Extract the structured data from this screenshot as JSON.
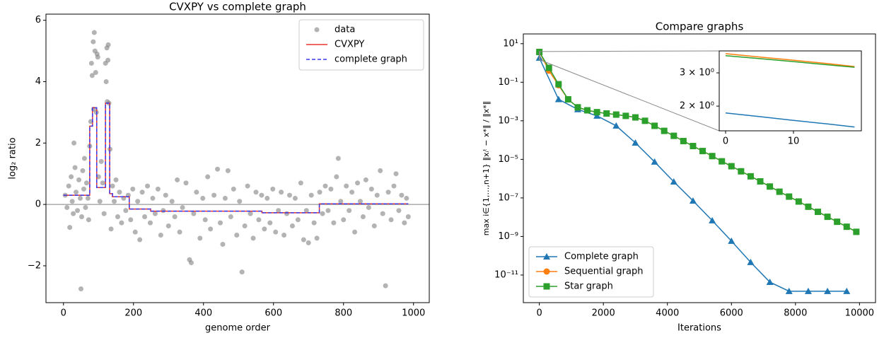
{
  "chart_data": [
    {
      "type": "scatter",
      "title": "CVXPY vs complete graph",
      "x_label": "genome order",
      "y_label": "log₂ ratio",
      "xlim": [
        -50,
        1045
      ],
      "ylim": [
        -3.2,
        6.2
      ],
      "xticks": [
        0,
        200,
        400,
        600,
        800,
        1000
      ],
      "yticks": [
        {
          "value": -2,
          "label": "−2"
        },
        0,
        2,
        4,
        6
      ],
      "hline": 0,
      "legend": "upper right",
      "series": [
        {
          "name": "data",
          "type": "scatter",
          "color": "#808080",
          "x": [
            5,
            10,
            15,
            18,
            22,
            25,
            28,
            30,
            33,
            36,
            40,
            44,
            48,
            50,
            52,
            55,
            58,
            60,
            63,
            66,
            70,
            72,
            75,
            78,
            80,
            82,
            85,
            86,
            88,
            90,
            92,
            94,
            96,
            98,
            100,
            104,
            108,
            112,
            116,
            120,
            122,
            124,
            125,
            127,
            128,
            130,
            133,
            136,
            140,
            145,
            150,
            155,
            160,
            166,
            172,
            178,
            185,
            192,
            198,
            205,
            212,
            218,
            225,
            232,
            240,
            248,
            255,
            262,
            270,
            278,
            285,
            292,
            300,
            310,
            318,
            325,
            332,
            340,
            350,
            360,
            365,
            372,
            380,
            390,
            398,
            405,
            412,
            420,
            430,
            440,
            448,
            455,
            462,
            470,
            478,
            486,
            495,
            503,
            510,
            518,
            526,
            534,
            542,
            550,
            558,
            566,
            574,
            582,
            590,
            598,
            606,
            614,
            622,
            630,
            638,
            646,
            654,
            662,
            670,
            678,
            686,
            694,
            700,
            708,
            716,
            724,
            732,
            740,
            748,
            756,
            764,
            772,
            780,
            785,
            792,
            800,
            808,
            816,
            824,
            832,
            840,
            848,
            856,
            864,
            872,
            880,
            888,
            896,
            905,
            912,
            920,
            928,
            936,
            944,
            950,
            958,
            966,
            974,
            980,
            985
          ],
          "values": [
            0.3,
            -0.1,
            0.6,
            -0.75,
            0.9,
            0.1,
            -0.3,
            2.0,
            1.2,
            0.4,
            -0.2,
            0.8,
            0.2,
            -2.75,
            -0.4,
            1.1,
            0.5,
            1.5,
            -0.1,
            0.7,
            0.2,
            -0.5,
            1.9,
            2.7,
            4.6,
            4.2,
            5.3,
            3.1,
            5.6,
            5.0,
            4.3,
            3.0,
            4.9,
            4.8,
            0.9,
            0.1,
            1.4,
            0.7,
            -0.3,
            4.6,
            4.0,
            5.1,
            3.35,
            4.7,
            5.2,
            3.3,
            1.8,
            -0.8,
            0.6,
            0.1,
            0.8,
            -0.4,
            0.4,
            -0.6,
            0.2,
            -0.2,
            0.3,
            -0.5,
            0.5,
            -0.9,
            0.1,
            -1.15,
            0.4,
            -0.4,
            0.6,
            -0.6,
            0.2,
            -0.3,
            0.5,
            -1.0,
            -0.2,
            0.3,
            -0.7,
            0.1,
            -0.4,
            0.8,
            -0.9,
            -0.1,
            0.7,
            -1.8,
            -1.9,
            -0.3,
            0.4,
            -1.1,
            0.2,
            -0.5,
            0.9,
            -0.8,
            0.3,
            1.15,
            -0.6,
            -1.3,
            0.2,
            1.1,
            -0.4,
            0.5,
            -1.0,
            0.1,
            -2.2,
            -0.7,
            0.6,
            -0.3,
            -1.1,
            0.4,
            -0.5,
            0.3,
            -0.8,
            0.2,
            -0.6,
            0.5,
            -0.9,
            -0.2,
            0.4,
            -1.0,
            -0.3,
            0.3,
            -0.7,
            0.2,
            -0.5,
            0.7,
            -1.15,
            -0.2,
            -1.25,
            0.3,
            -0.6,
            -1.1,
            0.4,
            -0.3,
            0.6,
            -0.2,
            0.5,
            -0.6,
            0.9,
            1.5,
            0.1,
            -0.5,
            0.6,
            -0.2,
            0.4,
            -0.9,
            0.7,
            0.1,
            -0.4,
            0.8,
            -0.1,
            0.5,
            -0.7,
            0.3,
            1.1,
            -0.3,
            -2.65,
            0.4,
            -0.5,
            0.6,
            1.0,
            -0.2,
            0.3,
            -0.6,
            0.2,
            -0.4
          ]
        },
        {
          "name": "CVXPY",
          "type": "line",
          "color": "#e8352b",
          "x": [
            0,
            75,
            75,
            83,
            83,
            95,
            95,
            120,
            120,
            132,
            132,
            140,
            140,
            188,
            188,
            249,
            249,
            567,
            567,
            731,
            731,
            985
          ],
          "values": [
            0.3,
            0.3,
            2.55,
            2.55,
            3.15,
            3.15,
            0.55,
            0.55,
            3.3,
            3.3,
            0.35,
            0.35,
            0.25,
            0.25,
            -0.15,
            -0.15,
            -0.22,
            -0.22,
            -0.27,
            -0.27,
            0.02,
            0.02
          ]
        },
        {
          "name": "complete graph",
          "type": "line",
          "color": "#3a3aee",
          "linestyle": "dashed",
          "x": [
            0,
            75,
            75,
            83,
            83,
            95,
            95,
            120,
            120,
            132,
            132,
            140,
            140,
            188,
            188,
            249,
            249,
            567,
            567,
            731,
            731,
            985
          ],
          "values": [
            0.3,
            0.3,
            2.55,
            2.55,
            3.15,
            3.15,
            0.55,
            0.55,
            3.3,
            3.3,
            0.35,
            0.35,
            0.25,
            0.25,
            -0.15,
            -0.15,
            -0.22,
            -0.22,
            -0.27,
            -0.27,
            0.02,
            0.02
          ]
        }
      ]
    },
    {
      "type": "line",
      "title": "Compare graphs",
      "x_label": "Iterations",
      "y_label": "max i∈{1,…,n+1}  ‖xᵢᵗ − x*‖ / ‖x*‖",
      "xlim": [
        -500,
        10500
      ],
      "ylim": [
        3.7e-13,
        32
      ],
      "yscale": "log",
      "xticks": [
        0,
        2000,
        4000,
        6000,
        8000,
        10000
      ],
      "yticks": [
        {
          "value": 10,
          "label": "10¹"
        },
        {
          "value": 0.1,
          "label": "10⁻¹"
        },
        {
          "value": 0.001,
          "label": "10⁻³"
        },
        {
          "value": 1e-05,
          "label": "10⁻⁵"
        },
        {
          "value": 1e-07,
          "label": "10⁻⁷"
        },
        {
          "value": 1e-09,
          "label": "10⁻⁹"
        },
        {
          "value": 1e-11,
          "label": "10⁻¹¹"
        }
      ],
      "legend": "lower left",
      "series": [
        {
          "name": "Complete graph",
          "color": "#1f77b4",
          "marker": "triangle",
          "x": [
            0,
            600,
            1200,
            1800,
            2400,
            3000,
            3600,
            4200,
            4800,
            5400,
            6000,
            6600,
            7200,
            7800,
            8400,
            9000,
            9600
          ],
          "values": [
            1.84,
            0.013,
            0.0039,
            0.0018,
            0.00055,
            7.2e-05,
            7.4e-06,
            6.9e-07,
            7.1e-08,
            6.7e-09,
            5.8e-10,
            4.6e-11,
            4.3e-12,
            1.45e-12,
            1.45e-12,
            1.45e-12,
            1.45e-12
          ]
        },
        {
          "name": "Sequential graph",
          "color": "#ff7f0e",
          "marker": "circle",
          "x": [
            0,
            300,
            600,
            900,
            1200,
            1500,
            1800,
            2100,
            2400,
            2700,
            3000,
            3300,
            3600,
            3900,
            4200,
            4500,
            4800,
            5100,
            5400,
            5700,
            6000,
            6300,
            6600,
            6900,
            7200,
            7500,
            7800,
            8100,
            8400,
            8700,
            9000,
            9300,
            9600,
            9900
          ],
          "values": [
            3.79,
            0.4,
            0.07,
            0.013,
            0.005,
            0.0035,
            0.0028,
            0.0024,
            0.0021,
            0.0018,
            0.0015,
            0.001,
            0.00055,
            0.0003,
            0.000166,
            8.9e-05,
            4.9e-05,
            2.7e-05,
            1.48e-05,
            7.9e-06,
            4.4e-06,
            2.4e-06,
            1.32e-06,
            7.2e-07,
            3.9e-07,
            2.1e-07,
            1.17e-07,
            6.5e-08,
            3.5e-08,
            1.9e-08,
            1.05e-08,
            5.8e-09,
            3.2e-09,
            1.74e-09
          ]
        },
        {
          "name": "Star graph",
          "color": "#2ca02c",
          "marker": "square",
          "x": [
            0,
            300,
            600,
            900,
            1200,
            1500,
            1800,
            2100,
            2400,
            2700,
            3000,
            3300,
            3600,
            3900,
            4200,
            4500,
            4800,
            5100,
            5400,
            5700,
            6000,
            6300,
            6600,
            6900,
            7200,
            7500,
            7800,
            8100,
            8400,
            8700,
            9000,
            9300,
            9600,
            9900
          ],
          "values": [
            3.7,
            0.56,
            0.079,
            0.013,
            0.005,
            0.0035,
            0.0028,
            0.0024,
            0.0021,
            0.0018,
            0.0015,
            0.001,
            0.00055,
            0.0003,
            0.000166,
            8.9e-05,
            4.9e-05,
            2.7e-05,
            1.48e-05,
            7.9e-06,
            4.4e-06,
            2.4e-06,
            1.32e-06,
            7.2e-07,
            3.9e-07,
            2.1e-07,
            1.17e-07,
            6.5e-08,
            3.5e-08,
            1.9e-08,
            1.05e-08,
            5.8e-09,
            3.2e-09,
            1.74e-09
          ]
        }
      ],
      "inset": {
        "xlim": [
          -0.94,
          20
        ],
        "ylim": [
          1.48,
          3.92
        ],
        "yscale": "log",
        "xticks": [
          0,
          10
        ],
        "yticks": [
          {
            "value": 2,
            "label": "2 × 10⁰"
          },
          {
            "value": 3,
            "label": "3 × 10⁰"
          }
        ],
        "x": [
          0,
          5,
          10,
          15,
          19
        ],
        "series": [
          {
            "color": "#1f77b4",
            "values": [
              1.84,
              1.76,
              1.68,
              1.61,
              1.55
            ]
          },
          {
            "color": "#ff7f0e",
            "values": [
              3.79,
              3.64,
              3.5,
              3.36,
              3.24
            ]
          },
          {
            "color": "#2ca02c",
            "values": [
              3.7,
              3.57,
              3.44,
              3.31,
              3.21
            ]
          }
        ]
      }
    }
  ]
}
